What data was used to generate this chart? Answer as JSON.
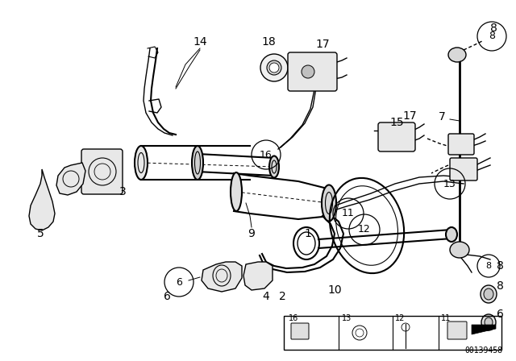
{
  "bg_color": "#ffffff",
  "fig_width": 6.4,
  "fig_height": 4.48,
  "dpi": 100,
  "diagram_number": "00139458"
}
